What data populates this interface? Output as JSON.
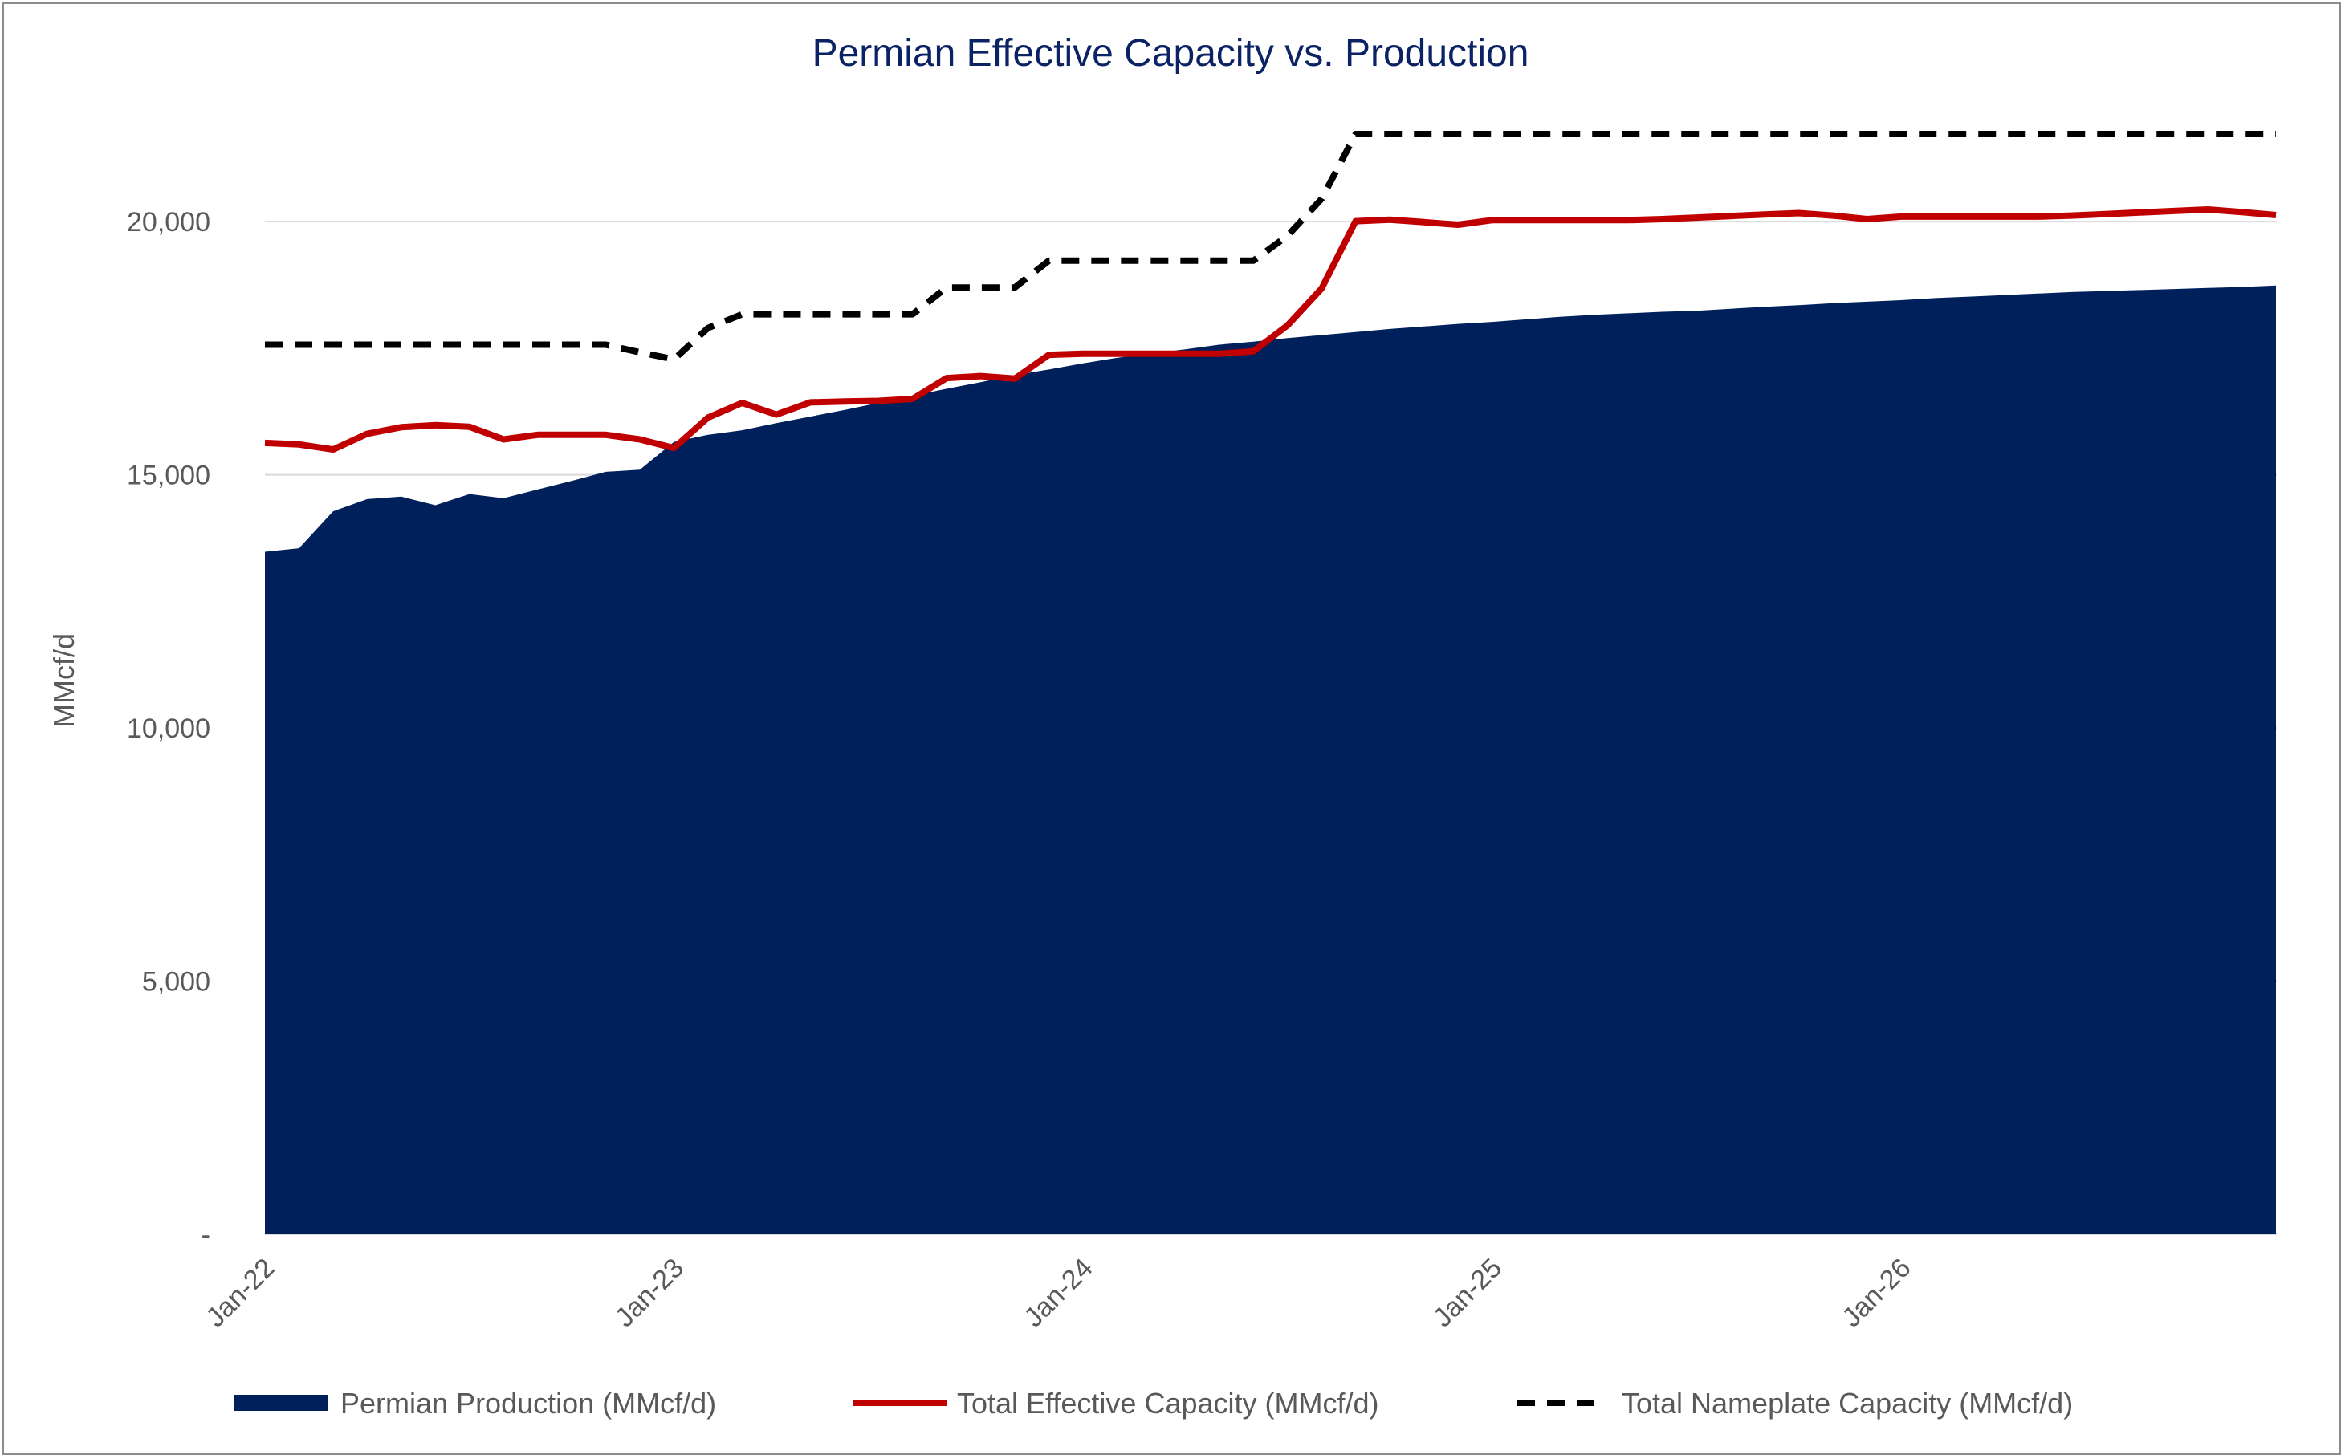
{
  "chart_data": {
    "type": "area",
    "title": "Permian Effective Capacity vs. Production",
    "ylabel": "MMcf/d",
    "xlabel": "",
    "ylim": [
      0,
      22000
    ],
    "y_ticks": [
      0,
      5000,
      10000,
      15000,
      20000
    ],
    "y_tick_labels": [
      "-",
      "5,000",
      "10,000",
      "15,000",
      "20,000"
    ],
    "x_tick_labels": [
      "Jan-22",
      "Jan-23",
      "Jan-24",
      "Jan-25",
      "Jan-26"
    ],
    "x_tick_index": [
      0,
      12,
      24,
      36,
      48
    ],
    "x_months": [
      "Jan-22",
      "Feb-22",
      "Mar-22",
      "Apr-22",
      "May-22",
      "Jun-22",
      "Jul-22",
      "Aug-22",
      "Sep-22",
      "Oct-22",
      "Nov-22",
      "Dec-22",
      "Jan-23",
      "Feb-23",
      "Mar-23",
      "Apr-23",
      "May-23",
      "Jun-23",
      "Jul-23",
      "Aug-23",
      "Sep-23",
      "Oct-23",
      "Nov-23",
      "Dec-23",
      "Jan-24",
      "Feb-24",
      "Mar-24",
      "Apr-24",
      "May-24",
      "Jun-24",
      "Jul-24",
      "Aug-24",
      "Sep-24",
      "Oct-24",
      "Nov-24",
      "Dec-24",
      "Jan-25",
      "Feb-25",
      "Mar-25",
      "Apr-25",
      "May-25",
      "Jun-25",
      "Jul-25",
      "Aug-25",
      "Sep-25",
      "Oct-25",
      "Nov-25",
      "Dec-25",
      "Jan-26",
      "Feb-26",
      "Mar-26",
      "Apr-26",
      "May-26",
      "Jun-26",
      "Jul-26",
      "Aug-26",
      "Sep-26",
      "Oct-26",
      "Nov-26",
      "Dec-26"
    ],
    "grid": true,
    "legend_position": "bottom",
    "series": [
      {
        "name": "Permian Production (MMcf/d)",
        "type": "area",
        "color": "#00205b",
        "values": [
          13480,
          13550,
          14280,
          14520,
          14570,
          14400,
          14620,
          14540,
          14710,
          14880,
          15060,
          15100,
          15650,
          15790,
          15880,
          16020,
          16150,
          16280,
          16420,
          16560,
          16700,
          16830,
          16970,
          17080,
          17200,
          17310,
          17400,
          17480,
          17570,
          17630,
          17700,
          17760,
          17820,
          17880,
          17930,
          17980,
          18020,
          18070,
          18120,
          18160,
          18190,
          18220,
          18240,
          18280,
          18320,
          18350,
          18390,
          18420,
          18450,
          18490,
          18520,
          18550,
          18580,
          18610,
          18630,
          18650,
          18670,
          18690,
          18710,
          18740
        ]
      },
      {
        "name": "Total Effective Capacity (MMcf/d)",
        "type": "line",
        "color": "#c00000",
        "values": [
          15630,
          15600,
          15500,
          15810,
          15940,
          15980,
          15950,
          15700,
          15790,
          15790,
          15790,
          15700,
          15530,
          16130,
          16420,
          16190,
          16430,
          16450,
          16460,
          16500,
          16910,
          16950,
          16900,
          17370,
          17390,
          17390,
          17390,
          17390,
          17390,
          17440,
          17950,
          18680,
          20010,
          20040,
          19990,
          19940,
          20030,
          20030,
          20030,
          20030,
          20030,
          20050,
          20080,
          20110,
          20140,
          20170,
          20120,
          20050,
          20100,
          20100,
          20100,
          20100,
          20100,
          20120,
          20150,
          20180,
          20210,
          20240,
          20190,
          20130
        ]
      },
      {
        "name": "Total Nameplate Capacity (MMcf/d)",
        "type": "line",
        "dashed": true,
        "color": "#000000",
        "values": [
          17570,
          17570,
          17570,
          17570,
          17570,
          17570,
          17570,
          17570,
          17570,
          17570,
          17570,
          17420,
          17280,
          17900,
          18170,
          18170,
          18170,
          18170,
          18170,
          18170,
          18700,
          18700,
          18700,
          19230,
          19230,
          19230,
          19230,
          19230,
          19230,
          19230,
          19720,
          20450,
          21730,
          21730,
          21730,
          21730,
          21730,
          21730,
          21730,
          21730,
          21730,
          21730,
          21730,
          21730,
          21730,
          21730,
          21730,
          21730,
          21730,
          21730,
          21730,
          21730,
          21730,
          21730,
          21730,
          21730,
          21730,
          21730,
          21730,
          21730
        ]
      }
    ]
  }
}
